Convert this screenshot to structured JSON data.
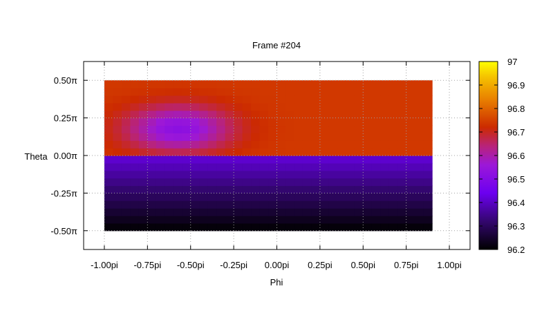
{
  "chart_data": {
    "type": "heatmap",
    "title": "Frame #204",
    "xlabel": "Phi",
    "ylabel": "Theta",
    "xlim": [
      -1.12,
      1.12
    ],
    "ylim": [
      -0.625,
      0.625
    ],
    "grid": true,
    "data_extent": {
      "x": [
        -1.0,
        0.9
      ],
      "y": [
        -0.5,
        0.5
      ]
    },
    "x_ticks": [
      {
        "value": -1.0,
        "label": "-1.00pi"
      },
      {
        "value": -0.75,
        "label": "-0.75pi"
      },
      {
        "value": -0.5,
        "label": "-0.50pi"
      },
      {
        "value": -0.25,
        "label": "-0.25pi"
      },
      {
        "value": 0.0,
        "label": "0.00pi"
      },
      {
        "value": 0.25,
        "label": "0.25pi"
      },
      {
        "value": 0.5,
        "label": "0.50pi"
      },
      {
        "value": 0.75,
        "label": "0.75pi"
      },
      {
        "value": 1.0,
        "label": "1.00pi"
      }
    ],
    "y_ticks": [
      {
        "value": 0.5,
        "label": "0.50π"
      },
      {
        "value": 0.25,
        "label": "0.25π"
      },
      {
        "value": 0.0,
        "label": "0.00π"
      },
      {
        "value": -0.25,
        "label": "-0.25π"
      },
      {
        "value": -0.5,
        "label": "-0.50π"
      }
    ],
    "colorbar": {
      "range": [
        96.2,
        97.0
      ],
      "ticks": [
        {
          "value": 97.0,
          "label": "97"
        },
        {
          "value": 96.9,
          "label": "96.9"
        },
        {
          "value": 96.8,
          "label": "96.8"
        },
        {
          "value": 96.7,
          "label": "96.7"
        },
        {
          "value": 96.6,
          "label": "96.6"
        },
        {
          "value": 96.5,
          "label": "96.5"
        },
        {
          "value": 96.4,
          "label": "96.4"
        },
        {
          "value": 96.3,
          "label": "96.3"
        },
        {
          "value": 96.2,
          "label": "96.2"
        }
      ],
      "stops": [
        {
          "t": 0.0,
          "color": "#000000"
        },
        {
          "t": 0.15,
          "color": "#33066e"
        },
        {
          "t": 0.3,
          "color": "#6c00f0"
        },
        {
          "t": 0.45,
          "color": "#9c18d8"
        },
        {
          "t": 0.55,
          "color": "#b8237a"
        },
        {
          "t": 0.65,
          "color": "#cc2a00"
        },
        {
          "t": 0.8,
          "color": "#e98100"
        },
        {
          "t": 0.92,
          "color": "#f5c300"
        },
        {
          "t": 1.0,
          "color": "#ffff00"
        }
      ]
    },
    "field": {
      "upper_half_base": 96.74,
      "upper_half_min": 96.52,
      "blob_center": {
        "x": -0.57,
        "y": 0.18
      },
      "lower_half_top": 96.42,
      "lower_half_bottom": 96.2
    }
  }
}
